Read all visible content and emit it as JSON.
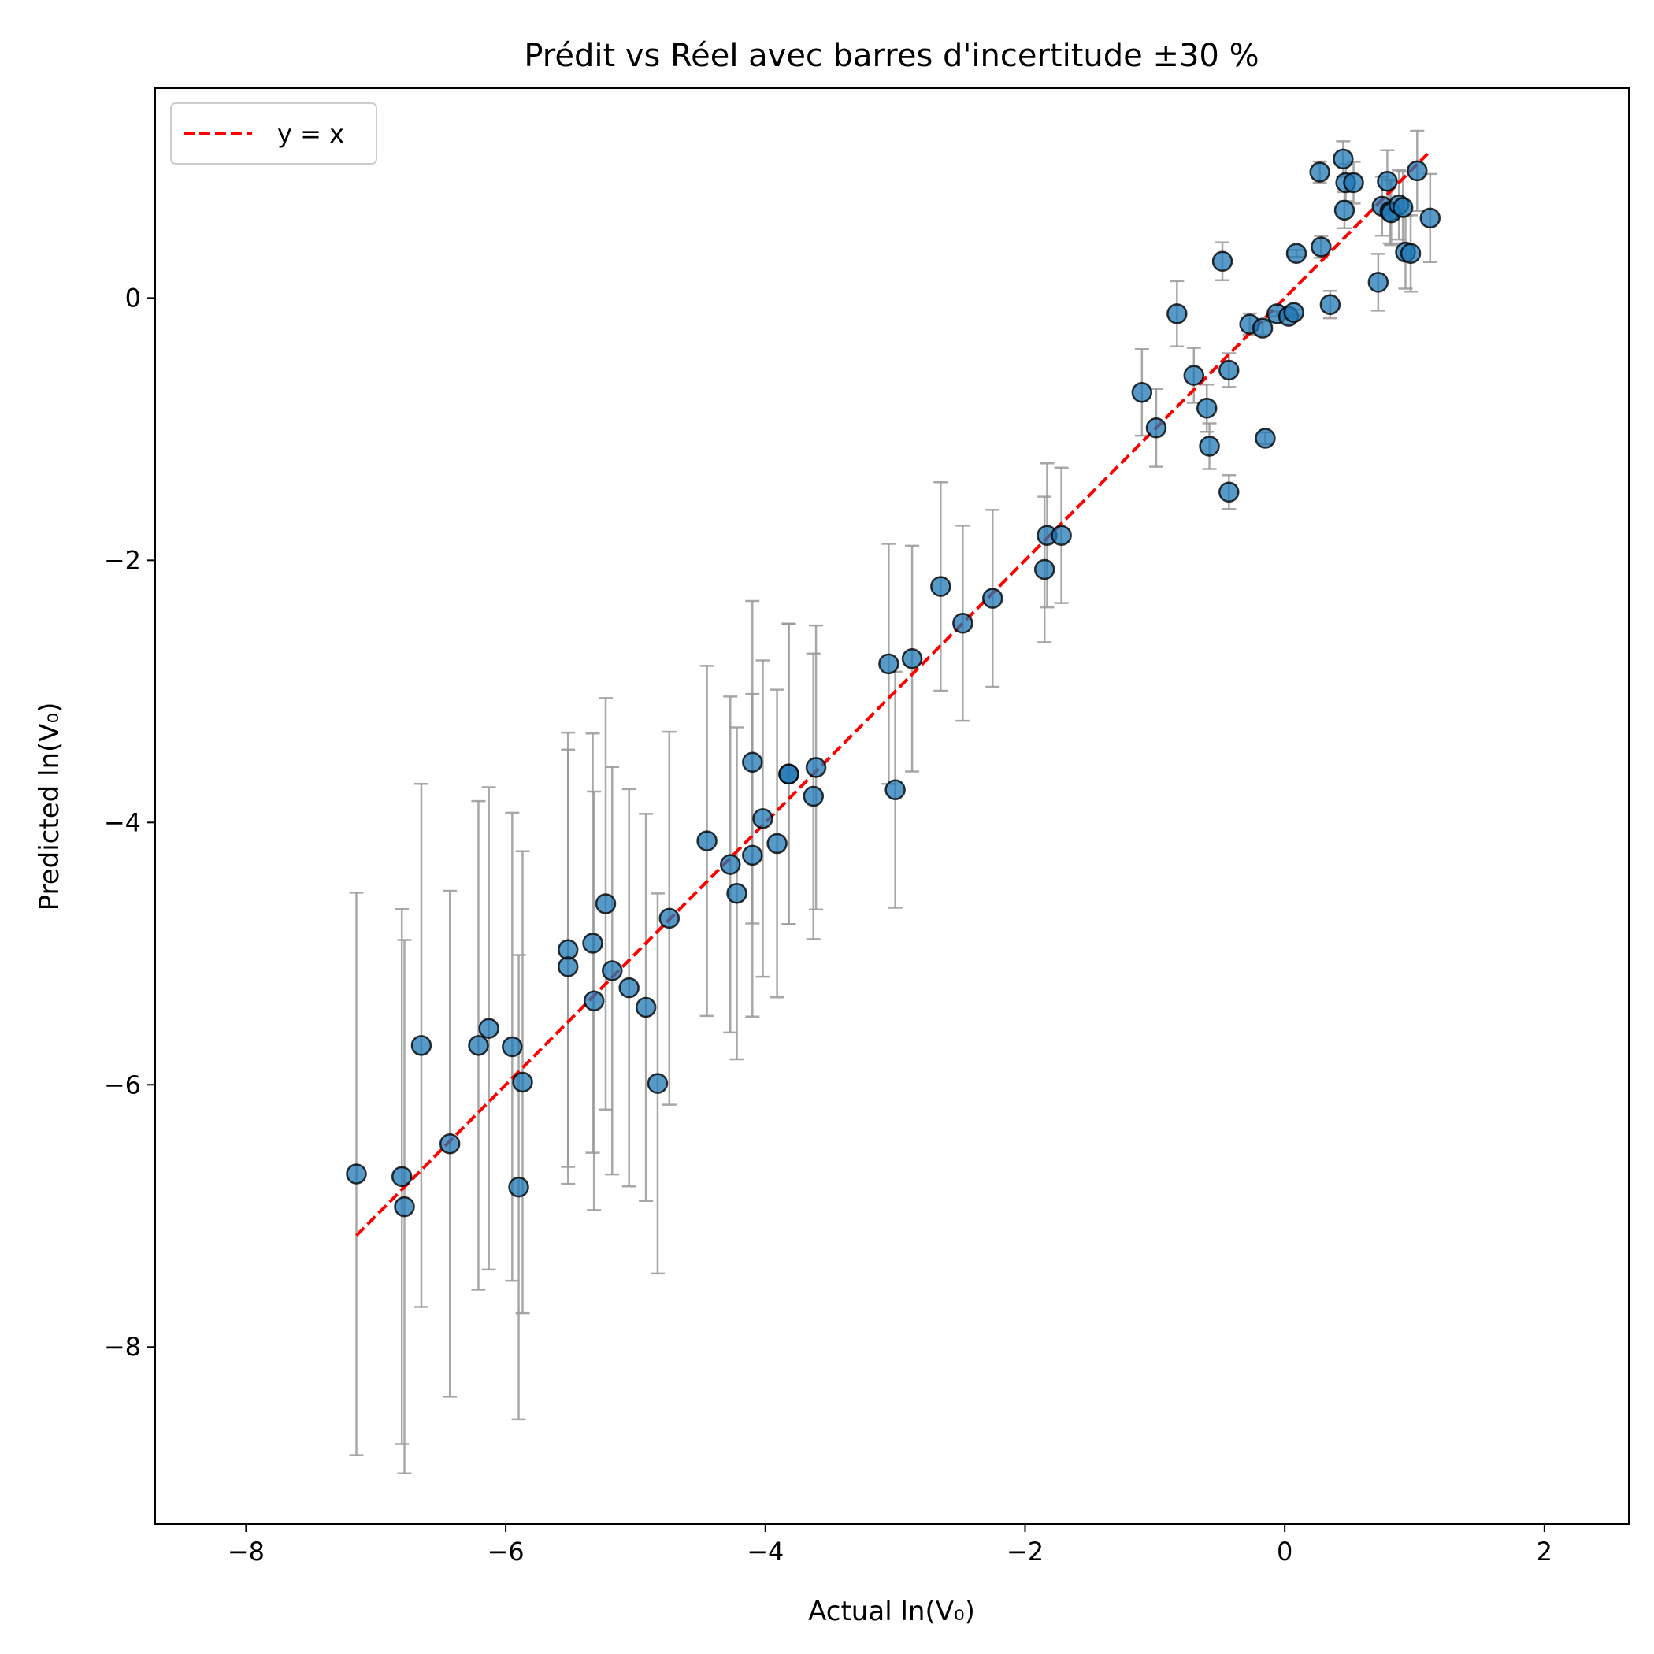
{
  "chart_data": {
    "type": "scatter",
    "title": "Prédit vs Réel avec barres d'incertitude ±30 %",
    "xlabel": "Actual ln(V₀)",
    "ylabel": "Predicted ln(V₀)",
    "xlim": [
      -8.7,
      2.65
    ],
    "ylim": [
      -9.35,
      1.6
    ],
    "xticks": [
      -8,
      -6,
      -4,
      -2,
      0,
      2
    ],
    "yticks": [
      -8,
      -6,
      -4,
      -2,
      0
    ],
    "xtick_labels": [
      "−8",
      "−6",
      "−4",
      "−2",
      "0",
      "2"
    ],
    "ytick_labels": [
      "−8",
      "−6",
      "−4",
      "−2",
      "0"
    ],
    "grid": false,
    "legend": {
      "position": "top-left",
      "entries": [
        {
          "label": "y = x",
          "color": "#ff0000",
          "style": "dashed"
        }
      ]
    },
    "reference_line": {
      "label": "y = x",
      "x_range": [
        -7.15,
        1.1
      ],
      "color": "#ff0000"
    },
    "error_bar_fraction": 0.3,
    "colors": {
      "points": "#1f77b4",
      "point_edge": "#000000",
      "error_bars": "#999999",
      "line": "#ff0000"
    },
    "points": [
      {
        "x": -7.15,
        "y": -6.68
      },
      {
        "x": -6.8,
        "y": -6.7
      },
      {
        "x": -6.78,
        "y": -6.93
      },
      {
        "x": -6.65,
        "y": -5.7
      },
      {
        "x": -6.43,
        "y": -6.45
      },
      {
        "x": -6.21,
        "y": -5.7
      },
      {
        "x": -6.13,
        "y": -5.57
      },
      {
        "x": -5.95,
        "y": -5.71
      },
      {
        "x": -5.9,
        "y": -6.78
      },
      {
        "x": -5.87,
        "y": -5.98
      },
      {
        "x": -5.52,
        "y": -4.97
      },
      {
        "x": -5.52,
        "y": -5.1
      },
      {
        "x": -5.33,
        "y": -4.92
      },
      {
        "x": -5.32,
        "y": -5.36
      },
      {
        "x": -5.23,
        "y": -4.62
      },
      {
        "x": -5.18,
        "y": -5.13
      },
      {
        "x": -5.05,
        "y": -5.26
      },
      {
        "x": -4.92,
        "y": -5.41
      },
      {
        "x": -4.83,
        "y": -5.99
      },
      {
        "x": -4.74,
        "y": -4.73
      },
      {
        "x": -4.45,
        "y": -4.14
      },
      {
        "x": -4.27,
        "y": -4.32
      },
      {
        "x": -4.22,
        "y": -4.54
      },
      {
        "x": -4.1,
        "y": -3.54
      },
      {
        "x": -4.1,
        "y": -4.25
      },
      {
        "x": -4.02,
        "y": -3.97
      },
      {
        "x": -3.91,
        "y": -4.16
      },
      {
        "x": -3.82,
        "y": -3.63
      },
      {
        "x": -3.82,
        "y": -3.63
      },
      {
        "x": -3.63,
        "y": -3.8
      },
      {
        "x": -3.61,
        "y": -3.58
      },
      {
        "x": -3.05,
        "y": -2.79
      },
      {
        "x": -3.0,
        "y": -3.75
      },
      {
        "x": -2.87,
        "y": -2.75
      },
      {
        "x": -2.65,
        "y": -2.2
      },
      {
        "x": -2.48,
        "y": -2.48
      },
      {
        "x": -2.25,
        "y": -2.29
      },
      {
        "x": -1.85,
        "y": -2.07
      },
      {
        "x": -1.83,
        "y": -1.81
      },
      {
        "x": -1.72,
        "y": -1.81
      },
      {
        "x": -1.1,
        "y": -0.72
      },
      {
        "x": -0.99,
        "y": -0.99
      },
      {
        "x": -0.83,
        "y": -0.12
      },
      {
        "x": -0.7,
        "y": -0.59
      },
      {
        "x": -0.6,
        "y": -0.84
      },
      {
        "x": -0.58,
        "y": -1.13
      },
      {
        "x": -0.48,
        "y": 0.28
      },
      {
        "x": -0.43,
        "y": -0.55
      },
      {
        "x": -0.43,
        "y": -1.48
      },
      {
        "x": -0.27,
        "y": -0.2
      },
      {
        "x": -0.17,
        "y": -0.23
      },
      {
        "x": -0.15,
        "y": -1.07
      },
      {
        "x": -0.06,
        "y": -0.12
      },
      {
        "x": 0.03,
        "y": -0.14
      },
      {
        "x": 0.07,
        "y": -0.11
      },
      {
        "x": 0.09,
        "y": 0.34
      },
      {
        "x": 0.27,
        "y": 0.96
      },
      {
        "x": 0.28,
        "y": 0.39
      },
      {
        "x": 0.35,
        "y": -0.05
      },
      {
        "x": 0.45,
        "y": 1.06
      },
      {
        "x": 0.46,
        "y": 0.67
      },
      {
        "x": 0.47,
        "y": 0.88
      },
      {
        "x": 0.53,
        "y": 0.88
      },
      {
        "x": 0.72,
        "y": 0.12
      },
      {
        "x": 0.75,
        "y": 0.7
      },
      {
        "x": 0.79,
        "y": 0.89
      },
      {
        "x": 0.81,
        "y": 0.66
      },
      {
        "x": 0.82,
        "y": 0.65
      },
      {
        "x": 0.88,
        "y": 0.71
      },
      {
        "x": 0.91,
        "y": 0.69
      },
      {
        "x": 0.93,
        "y": 0.35
      },
      {
        "x": 0.97,
        "y": 0.34
      },
      {
        "x": 1.02,
        "y": 0.97
      },
      {
        "x": 1.12,
        "y": 0.61
      }
    ]
  }
}
